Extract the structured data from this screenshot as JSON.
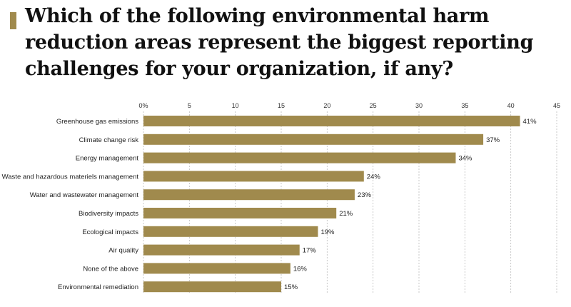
{
  "chart_data": {
    "type": "bar",
    "orientation": "horizontal",
    "title": "Which of the following environmental harm reduction areas represent the biggest reporting challenges for your organization, if any?",
    "categories": [
      "Greenhouse gas emissions",
      "Climate change risk",
      "Energy management",
      "Waste and hazardous materiels management",
      "Water and wastewater management",
      "Biodiversity impacts",
      "Ecological impacts",
      "Air quality",
      "None of the above",
      "Environmental remediation"
    ],
    "values": [
      41,
      37,
      34,
      24,
      23,
      21,
      19,
      17,
      16,
      15
    ],
    "value_labels": [
      "41%",
      "37%",
      "34%",
      "24%",
      "23%",
      "21%",
      "19%",
      "17%",
      "16%",
      "15%"
    ],
    "xlim": [
      0,
      45
    ],
    "xticks": [
      "0%",
      "5",
      "10",
      "15",
      "20",
      "25",
      "30",
      "35",
      "40",
      "45"
    ],
    "xaxis_position": "top",
    "grid": "vertical dashed",
    "bar_color": "#a08a4d",
    "accent_color": "#a08a4d"
  }
}
